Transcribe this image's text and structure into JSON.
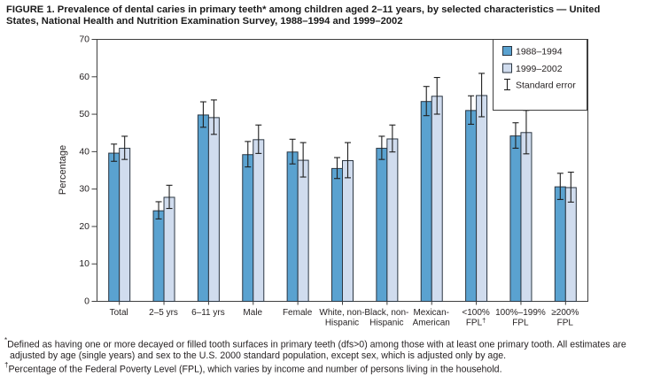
{
  "figure": {
    "title_line1": "FIGURE 1. Prevalence of dental caries in primary teeth* among children aged 2–11 years, by selected characteristics — United",
    "title_line2": "States, National Health and Nutrition Examination Survey, 1988–1994 and 1999–2002"
  },
  "colors": {
    "bar_dark": "#5aa2d0",
    "bar_light": "#d0dcee",
    "bar_stroke": "#2b3642",
    "axis": "#3f3f3f",
    "error": "#1f1f1f",
    "text": "#231f20",
    "background": "#ffffff"
  },
  "chart_data": {
    "type": "bar",
    "title": "Prevalence of dental caries in primary teeth among children aged 2–11 years, by selected characteristics — United States, 1988–1994 and 1999–2002",
    "xlabel": "",
    "ylabel": "Percentage",
    "ylim": [
      0,
      70
    ],
    "yticks": [
      0,
      10,
      20,
      30,
      40,
      50,
      60,
      70
    ],
    "grid": false,
    "legend_position": "top-right",
    "legend_error_label": "Standard error",
    "error_bars": "standard error",
    "categories": [
      "Total",
      "2–5 yrs",
      "6–11 yrs",
      "Male",
      "Female",
      "White, non-Hispanic",
      "Black, non-Hispanic",
      "Mexican-American",
      "<100% FPL†",
      "100%–199% FPL",
      "≥200% FPL"
    ],
    "category_label_lines": [
      [
        "Total"
      ],
      [
        "2–5 yrs"
      ],
      [
        "6–11 yrs"
      ],
      [
        "Male"
      ],
      [
        "Female"
      ],
      [
        "White, non-",
        "Hispanic"
      ],
      [
        "Black, non-",
        "Hispanic"
      ],
      [
        "Mexican-",
        "American"
      ],
      [
        "<100%",
        "FPL†"
      ],
      [
        "100%–199%",
        "FPL"
      ],
      [
        "≥200%",
        "FPL"
      ]
    ],
    "series": [
      {
        "name": "1988–1994",
        "color": "#5aa2d0",
        "values": [
          39.6,
          24.2,
          49.8,
          39.2,
          39.9,
          35.5,
          40.9,
          53.4,
          51.0,
          44.2,
          30.6
        ],
        "se": [
          2.3,
          2.3,
          3.4,
          3.4,
          3.3,
          2.8,
          3.1,
          3.9,
          3.8,
          3.4,
          3.5
        ]
      },
      {
        "name": "1999–2002",
        "color": "#d0dcee",
        "values": [
          40.9,
          27.8,
          49.1,
          43.2,
          37.7,
          37.6,
          43.4,
          54.8,
          55.0,
          45.1,
          30.4
        ],
        "se": [
          3.1,
          3.1,
          4.6,
          3.8,
          4.6,
          4.7,
          3.6,
          4.9,
          5.8,
          5.8,
          4.0
        ]
      }
    ]
  },
  "footnotes": {
    "fn1_marker": "*",
    "fn1_line1": "Defined as having one or more decayed or filled tooth surfaces in primary teeth (dfs>0) among those with at least one primary tooth. All estimates are",
    "fn1_line2": "adjusted by age (single years) and sex to the U.S. 2000 standard population, except sex, which is adjusted only by age.",
    "fn2_marker": "†",
    "fn2_text": "Percentage of the Federal Poverty Level (FPL), which varies by income and number of persons living in the household."
  }
}
